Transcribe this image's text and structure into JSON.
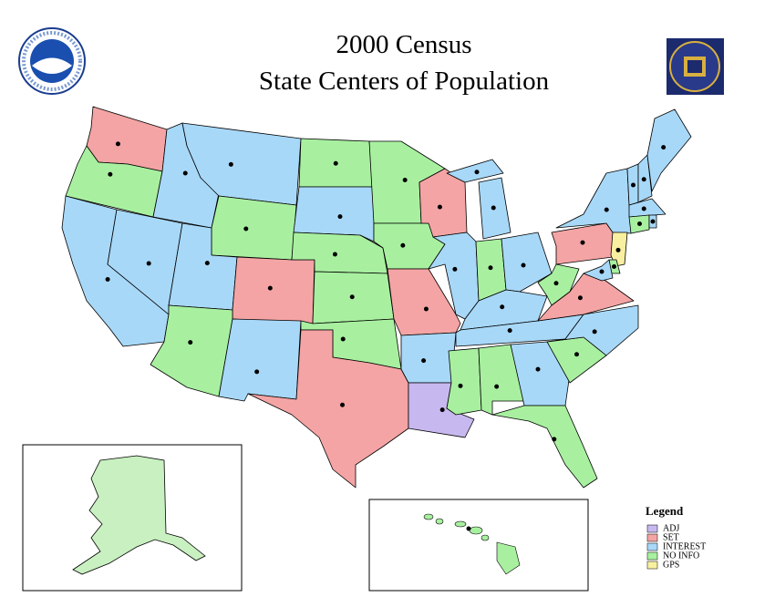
{
  "header": {
    "title_lines": [
      "2000 Census",
      "State Centers of Population"
    ]
  },
  "legend": {
    "title": "Legend",
    "items": [
      {
        "label": "ADJ",
        "color": "#c8b8f0"
      },
      {
        "label": "SET",
        "color": "#f4a4a4"
      },
      {
        "label": "INTEREST",
        "color": "#a8d8f8"
      },
      {
        "label": "NO INFO",
        "color": "#a8f0a0"
      },
      {
        "label": "GPS",
        "color": "#f8f0a0"
      }
    ]
  }
}
